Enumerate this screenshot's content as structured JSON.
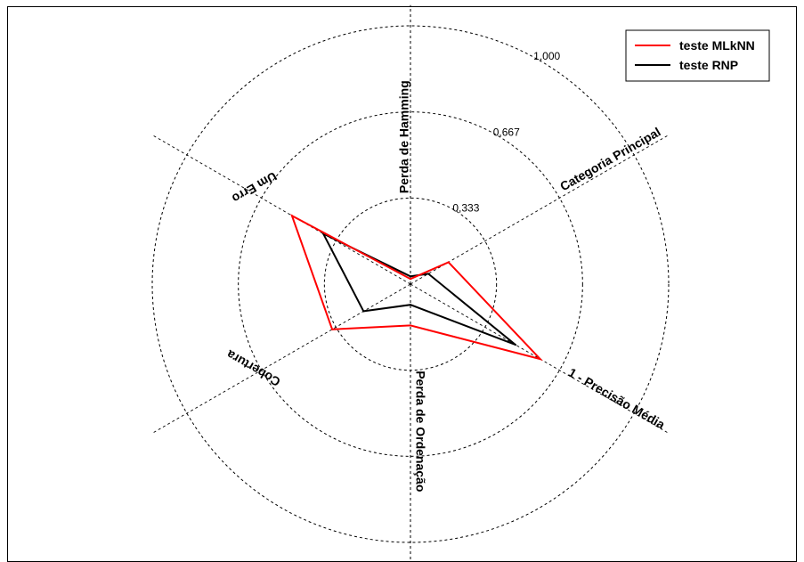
{
  "chart_data": {
    "type": "radar",
    "title": "",
    "axes": [
      "Perda de Hamming",
      "Categoria Principal",
      "1 - Precisão Média",
      "Perda de Ordenação",
      "Cobertura",
      "Um Erro"
    ],
    "rings": [
      "0,333",
      "0,667",
      "1,000"
    ],
    "range": [
      0,
      1
    ],
    "grid": true,
    "legend_position": "top-right",
    "series": [
      {
        "name": "teste MLkNN",
        "color": "#ff0000",
        "values": [
          0.02,
          0.17,
          0.58,
          0.16,
          0.35,
          0.53
        ]
      },
      {
        "name": "teste RNP",
        "color": "#000000",
        "values": [
          0.03,
          0.08,
          0.47,
          0.08,
          0.21,
          0.39
        ]
      }
    ]
  }
}
